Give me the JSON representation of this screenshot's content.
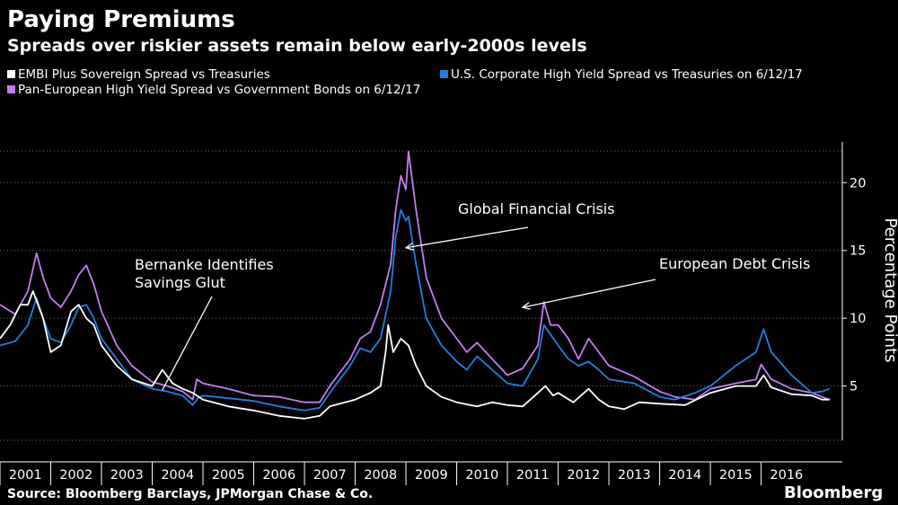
{
  "colors": {
    "background": "#000000",
    "embi": "#ffffff",
    "us_hy": "#1f7fe0",
    "pan_eu": "#c27ef0",
    "grid": "#6f6f6f"
  },
  "footer": {
    "source": "Source: Bloomberg Barclays, JPMorgan Chase & Co.",
    "brand": "Bloomberg"
  },
  "chart_data": {
    "type": "line",
    "title": "Paying Premiums",
    "subtitle": "Spreads over riskier assets remain below early-2000s levels",
    "ylabel": "Percentage Points",
    "xlabel": "",
    "xlim": [
      2001.0,
      2017.6
    ],
    "ylim": [
      1,
      23
    ],
    "y_ticks": [
      5,
      10,
      15,
      20
    ],
    "x_tick_labels": [
      "2001",
      "2002",
      "2003",
      "2004",
      "2005",
      "2006",
      "2007",
      "2008",
      "2009",
      "2010",
      "2011",
      "2012",
      "2013",
      "2014",
      "2015",
      "2016"
    ],
    "grid": "horizontal dotted",
    "legend_position": "top",
    "legend": [
      {
        "label": "EMBI Plus Sovereign Spread vs Treasuries",
        "color": "#ffffff"
      },
      {
        "label": "U.S. Corporate High Yield Spread vs Treasuries on 6/12/17",
        "color": "#1f7fe0"
      },
      {
        "label": "Pan-European High Yield Spread vs Government Bonds on 6/12/17",
        "color": "#c27ef0"
      }
    ],
    "annotations": [
      {
        "lines": [
          "Global Financial Crisis"
        ],
        "target_x": 2009.0,
        "target_y": 15.2
      },
      {
        "lines": [
          "European Debt Crisis"
        ],
        "target_x": 2011.3,
        "target_y": 10.8
      },
      {
        "lines": [
          "Bernanke Identifies",
          "Savings Glut"
        ],
        "target_x": 2004.2,
        "target_y": 4.7
      }
    ],
    "series": [
      {
        "name": "Pan-European High Yield Spread vs Government Bonds on 6/12/17",
        "color": "#c27ef0",
        "points": [
          [
            2001.0,
            11.0
          ],
          [
            2001.3,
            10.3
          ],
          [
            2001.55,
            12.0
          ],
          [
            2001.72,
            14.8
          ],
          [
            2001.85,
            13.0
          ],
          [
            2002.0,
            11.5
          ],
          [
            2002.2,
            10.8
          ],
          [
            2002.4,
            12.0
          ],
          [
            2002.55,
            13.2
          ],
          [
            2002.7,
            13.9
          ],
          [
            2002.85,
            12.5
          ],
          [
            2003.0,
            10.5
          ],
          [
            2003.3,
            8.0
          ],
          [
            2003.6,
            6.5
          ],
          [
            2004.0,
            5.3
          ],
          [
            2004.3,
            5.0
          ],
          [
            2004.6,
            4.6
          ],
          [
            2004.8,
            4.0
          ],
          [
            2004.88,
            5.5
          ],
          [
            2005.0,
            5.2
          ],
          [
            2005.5,
            4.8
          ],
          [
            2006.0,
            4.3
          ],
          [
            2006.5,
            4.2
          ],
          [
            2007.0,
            3.8
          ],
          [
            2007.3,
            3.8
          ],
          [
            2007.5,
            5.0
          ],
          [
            2007.7,
            6.0
          ],
          [
            2007.9,
            7.0
          ],
          [
            2008.1,
            8.5
          ],
          [
            2008.3,
            9.0
          ],
          [
            2008.5,
            11.0
          ],
          [
            2008.7,
            14.0
          ],
          [
            2008.8,
            18.0
          ],
          [
            2008.9,
            20.5
          ],
          [
            2009.0,
            19.5
          ],
          [
            2009.05,
            22.3
          ],
          [
            2009.2,
            18.0
          ],
          [
            2009.4,
            13.0
          ],
          [
            2009.7,
            10.0
          ],
          [
            2010.0,
            8.5
          ],
          [
            2010.2,
            7.5
          ],
          [
            2010.4,
            8.2
          ],
          [
            2010.7,
            7.0
          ],
          [
            2011.0,
            5.8
          ],
          [
            2011.3,
            6.3
          ],
          [
            2011.6,
            8.0
          ],
          [
            2011.72,
            11.2
          ],
          [
            2011.85,
            9.5
          ],
          [
            2012.0,
            9.5
          ],
          [
            2012.2,
            8.5
          ],
          [
            2012.4,
            7.0
          ],
          [
            2012.6,
            8.5
          ],
          [
            2012.8,
            7.5
          ],
          [
            2013.0,
            6.5
          ],
          [
            2013.5,
            5.7
          ],
          [
            2014.0,
            4.6
          ],
          [
            2014.3,
            4.2
          ],
          [
            2014.7,
            4.0
          ],
          [
            2015.0,
            4.8
          ],
          [
            2015.5,
            5.2
          ],
          [
            2015.9,
            5.5
          ],
          [
            2016.0,
            6.6
          ],
          [
            2016.2,
            5.5
          ],
          [
            2016.6,
            4.8
          ],
          [
            2017.0,
            4.5
          ],
          [
            2017.2,
            4.2
          ],
          [
            2017.35,
            4.0
          ]
        ]
      },
      {
        "name": "U.S. Corporate High Yield Spread vs Treasuries on 6/12/17",
        "color": "#1f7fe0",
        "points": [
          [
            2001.0,
            8.0
          ],
          [
            2001.3,
            8.3
          ],
          [
            2001.55,
            9.5
          ],
          [
            2001.72,
            11.5
          ],
          [
            2001.85,
            10.0
          ],
          [
            2002.0,
            8.5
          ],
          [
            2002.2,
            8.2
          ],
          [
            2002.4,
            9.5
          ],
          [
            2002.55,
            10.8
          ],
          [
            2002.7,
            11.0
          ],
          [
            2002.85,
            10.0
          ],
          [
            2003.0,
            8.5
          ],
          [
            2003.3,
            7.0
          ],
          [
            2003.6,
            5.5
          ],
          [
            2004.0,
            4.8
          ],
          [
            2004.3,
            4.6
          ],
          [
            2004.6,
            4.3
          ],
          [
            2004.8,
            3.6
          ],
          [
            2004.9,
            4.1
          ],
          [
            2005.0,
            4.3
          ],
          [
            2005.5,
            4.1
          ],
          [
            2006.0,
            3.9
          ],
          [
            2006.5,
            3.5
          ],
          [
            2007.0,
            3.2
          ],
          [
            2007.3,
            3.4
          ],
          [
            2007.5,
            4.5
          ],
          [
            2007.7,
            5.5
          ],
          [
            2007.9,
            6.5
          ],
          [
            2008.1,
            7.8
          ],
          [
            2008.3,
            7.5
          ],
          [
            2008.5,
            8.5
          ],
          [
            2008.7,
            12.0
          ],
          [
            2008.8,
            16.0
          ],
          [
            2008.9,
            18.0
          ],
          [
            2009.0,
            17.2
          ],
          [
            2009.05,
            17.5
          ],
          [
            2009.2,
            14.0
          ],
          [
            2009.4,
            10.0
          ],
          [
            2009.7,
            8.0
          ],
          [
            2010.0,
            6.8
          ],
          [
            2010.2,
            6.2
          ],
          [
            2010.4,
            7.2
          ],
          [
            2010.7,
            6.2
          ],
          [
            2011.0,
            5.2
          ],
          [
            2011.3,
            5.0
          ],
          [
            2011.6,
            7.0
          ],
          [
            2011.72,
            9.5
          ],
          [
            2011.85,
            8.8
          ],
          [
            2012.0,
            8.0
          ],
          [
            2012.2,
            7.0
          ],
          [
            2012.4,
            6.5
          ],
          [
            2012.6,
            6.8
          ],
          [
            2012.8,
            6.2
          ],
          [
            2013.0,
            5.5
          ],
          [
            2013.5,
            5.2
          ],
          [
            2014.0,
            4.2
          ],
          [
            2014.3,
            4.0
          ],
          [
            2014.7,
            4.5
          ],
          [
            2015.0,
            5.0
          ],
          [
            2015.5,
            6.5
          ],
          [
            2015.9,
            7.5
          ],
          [
            2016.05,
            9.2
          ],
          [
            2016.2,
            7.5
          ],
          [
            2016.6,
            5.8
          ],
          [
            2017.0,
            4.5
          ],
          [
            2017.2,
            4.6
          ],
          [
            2017.35,
            4.8
          ]
        ]
      },
      {
        "name": "EMBI Plus Sovereign Spread vs Treasuries",
        "color": "#ffffff",
        "points": [
          [
            2001.0,
            8.5
          ],
          [
            2001.2,
            9.5
          ],
          [
            2001.4,
            11.0
          ],
          [
            2001.55,
            11.0
          ],
          [
            2001.65,
            12.0
          ],
          [
            2001.85,
            10.0
          ],
          [
            2002.0,
            7.5
          ],
          [
            2002.2,
            8.0
          ],
          [
            2002.4,
            10.5
          ],
          [
            2002.55,
            11.0
          ],
          [
            2002.7,
            10.0
          ],
          [
            2002.85,
            9.5
          ],
          [
            2003.0,
            8.0
          ],
          [
            2003.3,
            6.5
          ],
          [
            2003.6,
            5.5
          ],
          [
            2004.0,
            5.0
          ],
          [
            2004.2,
            6.2
          ],
          [
            2004.4,
            5.2
          ],
          [
            2004.6,
            4.8
          ],
          [
            2004.8,
            4.5
          ],
          [
            2005.0,
            4.0
          ],
          [
            2005.5,
            3.5
          ],
          [
            2006.0,
            3.2
          ],
          [
            2006.5,
            2.8
          ],
          [
            2007.0,
            2.6
          ],
          [
            2007.3,
            2.8
          ],
          [
            2007.5,
            3.5
          ],
          [
            2007.8,
            3.8
          ],
          [
            2008.0,
            4.0
          ],
          [
            2008.3,
            4.5
          ],
          [
            2008.5,
            5.0
          ],
          [
            2008.6,
            7.5
          ],
          [
            2008.65,
            9.5
          ],
          [
            2008.75,
            7.5
          ],
          [
            2008.9,
            8.5
          ],
          [
            2009.05,
            8.0
          ],
          [
            2009.2,
            6.5
          ],
          [
            2009.4,
            5.0
          ],
          [
            2009.7,
            4.2
          ],
          [
            2010.0,
            3.8
          ],
          [
            2010.4,
            3.5
          ],
          [
            2010.7,
            3.8
          ],
          [
            2011.0,
            3.6
          ],
          [
            2011.3,
            3.5
          ],
          [
            2011.6,
            4.5
          ],
          [
            2011.75,
            5.0
          ],
          [
            2011.9,
            4.3
          ],
          [
            2012.0,
            4.5
          ],
          [
            2012.3,
            3.8
          ],
          [
            2012.6,
            4.8
          ],
          [
            2012.8,
            4.0
          ],
          [
            2013.0,
            3.5
          ],
          [
            2013.3,
            3.3
          ],
          [
            2013.6,
            3.8
          ],
          [
            2014.0,
            3.7
          ],
          [
            2014.5,
            3.6
          ],
          [
            2015.0,
            4.5
          ],
          [
            2015.5,
            5.0
          ],
          [
            2015.9,
            5.0
          ],
          [
            2016.05,
            5.8
          ],
          [
            2016.2,
            4.9
          ],
          [
            2016.6,
            4.4
          ],
          [
            2017.0,
            4.3
          ],
          [
            2017.2,
            4.0
          ],
          [
            2017.35,
            4.0
          ]
        ]
      }
    ]
  }
}
